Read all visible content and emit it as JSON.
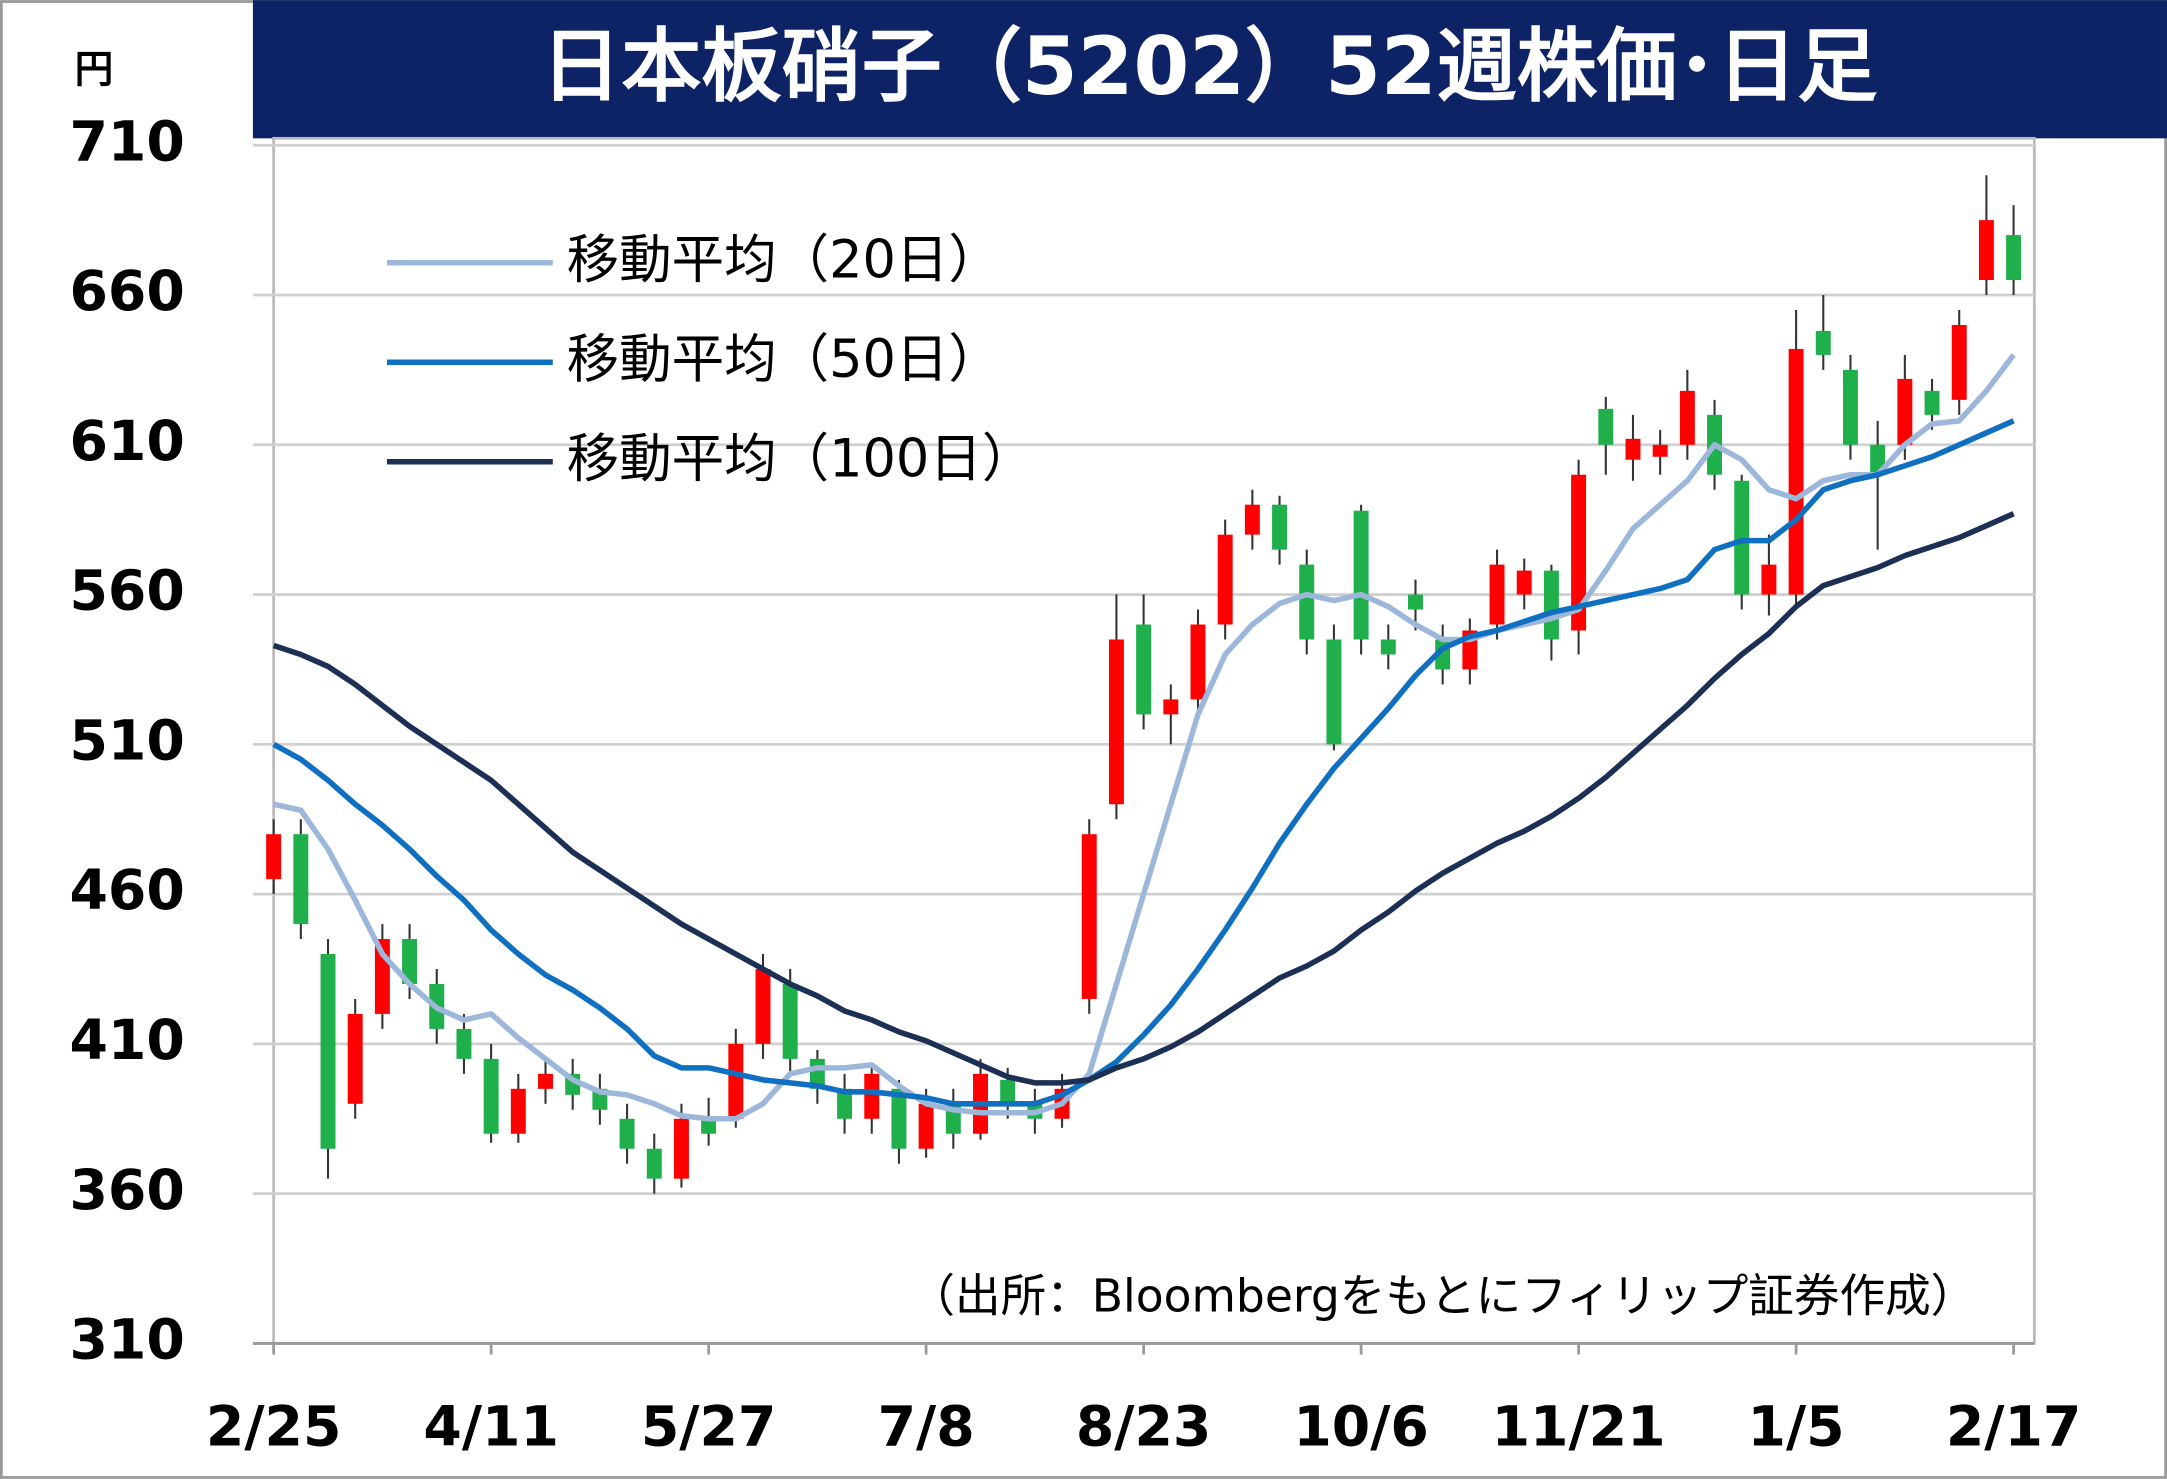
{
  "chart_data": {
    "type": "candlestick",
    "title": "日本板硝子（5202）52週株価･日足",
    "y_unit": "円",
    "note": "（出所：Bloombergをもとにフィリップ証券作成）",
    "categories": [
      "2/25",
      null,
      null,
      null,
      null,
      null,
      null,
      null,
      "4/11",
      null,
      null,
      null,
      null,
      null,
      null,
      null,
      "5/27",
      null,
      null,
      null,
      null,
      null,
      null,
      null,
      "7/8",
      null,
      null,
      null,
      null,
      null,
      null,
      null,
      "8/23",
      null,
      null,
      null,
      null,
      null,
      null,
      null,
      "10/6",
      null,
      null,
      null,
      null,
      null,
      null,
      null,
      "11/21",
      null,
      null,
      null,
      null,
      null,
      null,
      null,
      "1/5",
      null,
      null,
      null,
      null,
      null,
      null,
      null,
      "2/17"
    ],
    "open": [
      465,
      480,
      440,
      390,
      420,
      445,
      430,
      415,
      405,
      380,
      395,
      400,
      395,
      385,
      375,
      365,
      385,
      385,
      410,
      430,
      405,
      395,
      385,
      395,
      375,
      390,
      380,
      398,
      390,
      385,
      425,
      490,
      550,
      520,
      525,
      550,
      580,
      590,
      570,
      545,
      588,
      545,
      560,
      545,
      535,
      550,
      560,
      568,
      548,
      622,
      605,
      606,
      610,
      620,
      598,
      560,
      560,
      648,
      635,
      610,
      610,
      628,
      625,
      665,
      680
    ],
    "high": [
      485,
      485,
      445,
      425,
      450,
      450,
      435,
      420,
      410,
      400,
      405,
      405,
      400,
      390,
      380,
      390,
      392,
      415,
      440,
      435,
      408,
      400,
      403,
      398,
      395,
      395,
      405,
      402,
      395,
      400,
      485,
      560,
      560,
      530,
      555,
      585,
      595,
      593,
      575,
      550,
      590,
      550,
      565,
      550,
      552,
      575,
      572,
      570,
      605,
      626,
      620,
      615,
      635,
      625,
      600,
      580,
      655,
      660,
      640,
      618,
      640,
      632,
      655,
      700,
      690
    ],
    "low": [
      460,
      445,
      365,
      385,
      415,
      425,
      410,
      400,
      377,
      377,
      390,
      388,
      383,
      370,
      360,
      362,
      376,
      382,
      405,
      400,
      390,
      380,
      380,
      370,
      372,
      375,
      378,
      385,
      380,
      382,
      420,
      485,
      515,
      510,
      520,
      545,
      575,
      570,
      540,
      508,
      540,
      535,
      548,
      530,
      530,
      545,
      555,
      538,
      540,
      600,
      598,
      600,
      605,
      595,
      555,
      553,
      556,
      635,
      605,
      575,
      605,
      615,
      620,
      660,
      660
    ],
    "close": [
      480,
      450,
      375,
      420,
      445,
      430,
      415,
      405,
      380,
      395,
      400,
      393,
      388,
      375,
      365,
      385,
      380,
      410,
      435,
      405,
      395,
      385,
      400,
      375,
      390,
      380,
      400,
      390,
      385,
      395,
      480,
      545,
      520,
      525,
      550,
      580,
      590,
      575,
      545,
      510,
      545,
      540,
      555,
      535,
      548,
      570,
      568,
      545,
      600,
      610,
      612,
      610,
      628,
      600,
      560,
      570,
      642,
      640,
      610,
      600,
      632,
      620,
      650,
      685,
      665
    ],
    "up_color": "#ff0000",
    "down_color": "#1fb04c",
    "series": [
      {
        "name": "移動平均（20日）",
        "color": "#9db7da",
        "values": [
          490,
          488,
          475,
          458,
          440,
          430,
          422,
          418,
          420,
          412,
          405,
          398,
          394,
          393,
          390,
          386,
          385,
          385,
          390,
          400,
          402,
          402,
          403,
          396,
          390,
          388,
          387,
          387,
          387,
          390,
          400,
          430,
          460,
          490,
          520,
          540,
          550,
          557,
          560,
          558,
          560,
          556,
          550,
          545,
          545,
          548,
          550,
          552,
          555,
          568,
          582,
          590,
          598,
          610,
          605,
          595,
          592,
          598,
          600,
          600,
          610,
          617,
          618,
          628,
          640
        ]
      },
      {
        "name": "移動平均（50日）",
        "color": "#0f6fc0",
        "values": [
          510,
          505,
          498,
          490,
          483,
          475,
          466,
          458,
          448,
          440,
          433,
          428,
          422,
          415,
          406,
          402,
          402,
          400,
          398,
          397,
          396,
          394,
          394,
          393,
          392,
          390,
          390,
          390,
          390,
          393,
          398,
          404,
          413,
          423,
          435,
          448,
          462,
          477,
          490,
          502,
          512,
          522,
          533,
          542,
          546,
          548,
          551,
          554,
          556,
          558,
          560,
          562,
          565,
          575,
          578,
          578,
          585,
          595,
          598,
          600,
          603,
          606,
          610,
          614,
          618
        ]
      },
      {
        "name": "移動平均（100日）",
        "color": "#1c2f55",
        "values": [
          543,
          540,
          536,
          530,
          523,
          516,
          510,
          504,
          498,
          490,
          482,
          474,
          468,
          462,
          456,
          450,
          445,
          440,
          435,
          430,
          426,
          421,
          418,
          414,
          411,
          407,
          403,
          399,
          397,
          397,
          398,
          402,
          405,
          409,
          414,
          420,
          426,
          432,
          436,
          441,
          448,
          454,
          461,
          467,
          472,
          477,
          481,
          486,
          492,
          499,
          507,
          515,
          523,
          532,
          540,
          547,
          556,
          563,
          566,
          569,
          573,
          576,
          579,
          583,
          587
        ]
      }
    ],
    "ylim": [
      310,
      710
    ],
    "yticks": [
      310,
      360,
      410,
      460,
      510,
      560,
      610,
      660,
      710
    ],
    "grid": true
  }
}
